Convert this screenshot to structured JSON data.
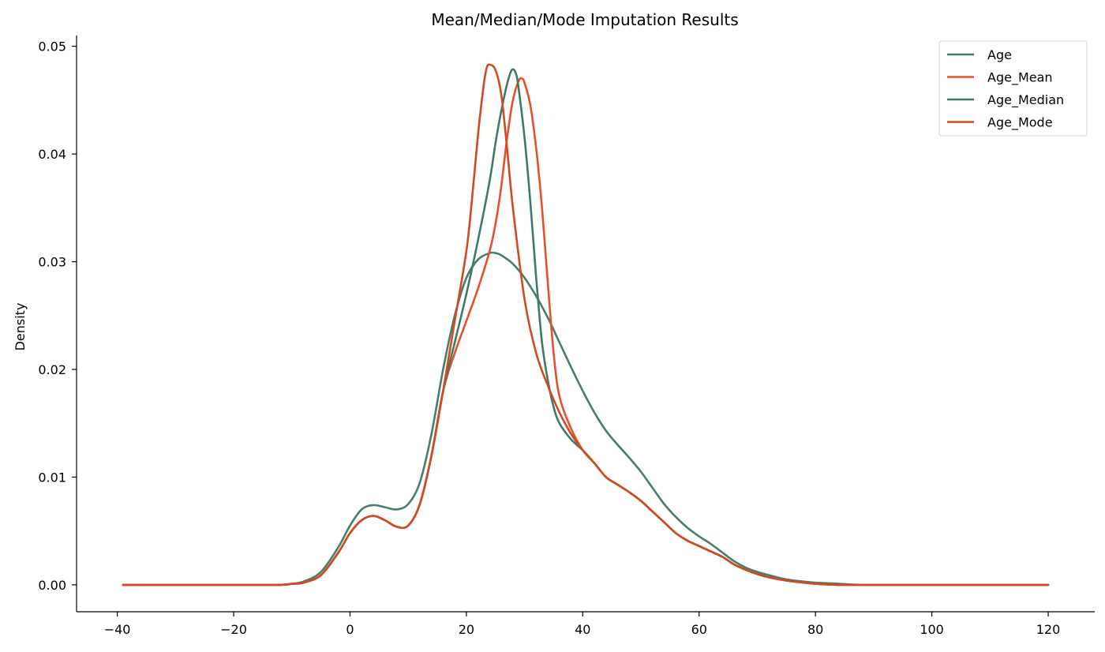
{
  "chart_data": {
    "type": "line",
    "title": "Mean/Median/Mode Imputation Results",
    "xlabel": "",
    "ylabel": "Density",
    "xlim": [
      -47,
      128
    ],
    "ylim": [
      -0.0025,
      0.051
    ],
    "xticks": [
      -40,
      -20,
      0,
      20,
      40,
      60,
      80,
      100,
      120
    ],
    "xtick_labels": [
      "−40",
      "−20",
      "0",
      "20",
      "40",
      "60",
      "80",
      "100",
      "120"
    ],
    "yticks": [
      0.0,
      0.01,
      0.02,
      0.03,
      0.04,
      0.05
    ],
    "ytick_labels": [
      "0.00",
      "0.01",
      "0.02",
      "0.03",
      "0.04",
      "0.05"
    ],
    "grid": false,
    "legend_position": "top-right",
    "spines": "left-bottom",
    "series": [
      {
        "name": "Age",
        "color": "#4a7c6a",
        "x": [
          -39,
          -20,
          -12,
          -10,
          -8,
          -5,
          -2,
          0,
          2,
          4,
          6,
          8,
          10,
          12,
          14,
          16,
          18,
          20,
          22,
          24,
          25,
          26,
          28,
          30,
          32,
          34,
          36,
          38,
          40,
          42,
          44,
          46,
          48,
          50,
          52,
          54,
          56,
          58,
          60,
          62,
          64,
          66,
          68,
          70,
          72,
          75,
          78,
          80,
          84,
          88,
          95,
          110,
          120
        ],
        "y": [
          0,
          0,
          0,
          0.0001,
          0.0003,
          0.0012,
          0.0035,
          0.0055,
          0.007,
          0.0074,
          0.0072,
          0.007,
          0.0075,
          0.0095,
          0.014,
          0.02,
          0.025,
          0.0285,
          0.0302,
          0.0308,
          0.0308,
          0.0306,
          0.0298,
          0.0285,
          0.0268,
          0.0248,
          0.0225,
          0.0202,
          0.018,
          0.016,
          0.0143,
          0.013,
          0.0118,
          0.0105,
          0.009,
          0.0075,
          0.0063,
          0.0053,
          0.0045,
          0.0038,
          0.003,
          0.0022,
          0.0016,
          0.0012,
          0.0009,
          0.0005,
          0.0003,
          0.0002,
          0.0001,
          0,
          0,
          0,
          0
        ]
      },
      {
        "name": "Age_Mean",
        "color": "#e8502a",
        "x": [
          -39,
          -20,
          -12,
          -10,
          -8,
          -5,
          -2,
          0,
          2,
          4,
          6,
          8,
          10,
          12,
          14,
          16,
          18,
          20,
          22,
          24,
          25,
          26,
          27,
          28,
          29,
          29.6,
          30,
          31,
          32,
          33,
          34,
          35,
          36,
          38,
          40,
          42,
          44,
          46,
          48,
          50,
          52,
          54,
          56,
          58,
          60,
          62,
          64,
          66,
          68,
          70,
          72,
          75,
          78,
          80,
          84,
          88,
          95,
          110,
          120
        ],
        "y": [
          0,
          0,
          0,
          0.0001,
          0.0002,
          0.0009,
          0.003,
          0.0048,
          0.006,
          0.0064,
          0.006,
          0.0054,
          0.0055,
          0.0075,
          0.012,
          0.018,
          0.0215,
          0.0245,
          0.0275,
          0.031,
          0.0335,
          0.037,
          0.0415,
          0.045,
          0.0468,
          0.047,
          0.0466,
          0.0445,
          0.0405,
          0.035,
          0.028,
          0.0215,
          0.0175,
          0.0145,
          0.0125,
          0.0113,
          0.01,
          0.0093,
          0.0086,
          0.0078,
          0.0068,
          0.0058,
          0.0048,
          0.0041,
          0.0036,
          0.0031,
          0.0026,
          0.0019,
          0.0014,
          0.001,
          0.0007,
          0.0004,
          0.0002,
          0.0001,
          0,
          0,
          0,
          0,
          0
        ]
      },
      {
        "name": "Age_Median",
        "color": "#3f7a69",
        "x": [
          -39,
          -20,
          -12,
          -10,
          -8,
          -5,
          -2,
          0,
          2,
          4,
          6,
          8,
          10,
          12,
          14,
          16,
          18,
          20,
          22,
          24,
          25,
          26,
          27,
          27.8,
          28.5,
          29,
          30,
          31,
          32,
          33,
          34,
          35,
          36,
          38,
          40,
          42,
          44,
          46,
          48,
          50,
          52,
          54,
          56,
          58,
          60,
          62,
          64,
          66,
          68,
          70,
          72,
          75,
          78,
          80,
          84,
          88,
          95,
          110,
          120
        ],
        "y": [
          0,
          0,
          0,
          0.0001,
          0.0002,
          0.0009,
          0.003,
          0.0048,
          0.006,
          0.0064,
          0.006,
          0.0054,
          0.0055,
          0.0075,
          0.012,
          0.018,
          0.0225,
          0.027,
          0.032,
          0.0375,
          0.041,
          0.044,
          0.0465,
          0.0478,
          0.0475,
          0.046,
          0.0415,
          0.0355,
          0.0285,
          0.0225,
          0.019,
          0.0165,
          0.015,
          0.0135,
          0.0125,
          0.0113,
          0.01,
          0.0093,
          0.0086,
          0.0078,
          0.0068,
          0.0058,
          0.0048,
          0.0041,
          0.0036,
          0.0031,
          0.0026,
          0.0019,
          0.0014,
          0.001,
          0.0007,
          0.0004,
          0.0002,
          0.0001,
          0,
          0,
          0,
          0,
          0
        ]
      },
      {
        "name": "Age_Mode",
        "color": "#d24a22",
        "x": [
          -39,
          -20,
          -12,
          -10,
          -8,
          -5,
          -2,
          0,
          2,
          4,
          6,
          8,
          10,
          12,
          14,
          16,
          18,
          20,
          21,
          22,
          23,
          23.5,
          24,
          25,
          26,
          27,
          28,
          30,
          32,
          34,
          36,
          38,
          40,
          42,
          44,
          46,
          48,
          50,
          52,
          54,
          56,
          58,
          60,
          62,
          64,
          66,
          68,
          70,
          72,
          75,
          78,
          80,
          84,
          88,
          95,
          110,
          120
        ],
        "y": [
          0,
          0,
          0,
          0.0001,
          0.0002,
          0.0009,
          0.003,
          0.0048,
          0.006,
          0.0064,
          0.006,
          0.0054,
          0.0055,
          0.0075,
          0.012,
          0.018,
          0.0245,
          0.031,
          0.036,
          0.0418,
          0.0465,
          0.048,
          0.0483,
          0.0478,
          0.0455,
          0.0405,
          0.035,
          0.0265,
          0.0215,
          0.0185,
          0.016,
          0.014,
          0.0125,
          0.0113,
          0.01,
          0.0093,
          0.0086,
          0.0078,
          0.0068,
          0.0058,
          0.0048,
          0.0041,
          0.0036,
          0.0031,
          0.0026,
          0.0019,
          0.0014,
          0.001,
          0.0007,
          0.0004,
          0.0002,
          0.0001,
          0,
          0,
          0,
          0,
          0
        ]
      }
    ]
  }
}
